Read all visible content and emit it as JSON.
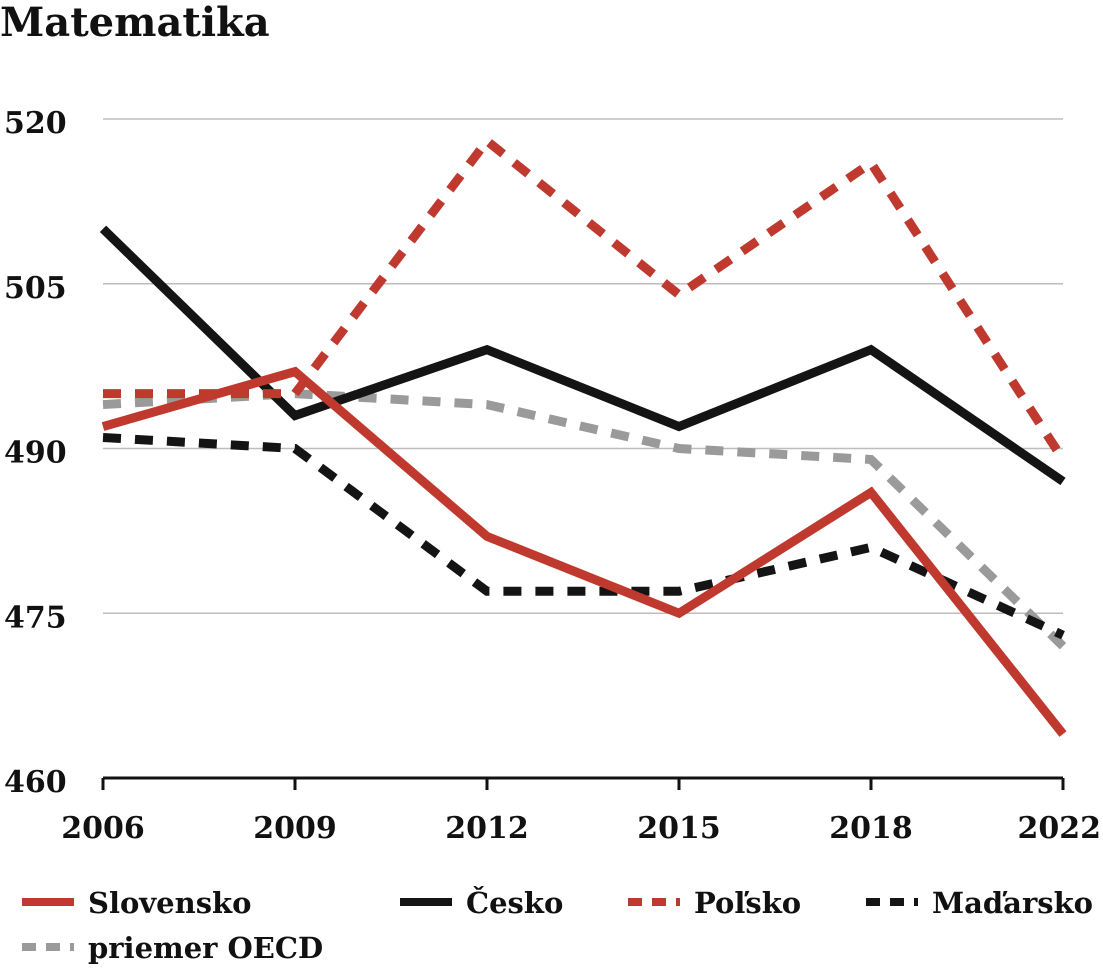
{
  "chart_data": {
    "type": "line",
    "title": "Matematika",
    "xlabel": "",
    "ylabel": "",
    "categories": [
      "2006",
      "2009",
      "2012",
      "2015",
      "2018",
      "2022"
    ],
    "ylim": [
      460,
      520
    ],
    "yticks": [
      520,
      505,
      490,
      475,
      460
    ],
    "grid": true,
    "legend_position": "bottom",
    "series": [
      {
        "name": "Slovensko",
        "values": [
          492,
          497,
          482,
          475,
          486,
          464
        ],
        "color": "#c0392f",
        "dashed": false
      },
      {
        "name": "Česko",
        "values": [
          510,
          493,
          499,
          492,
          499,
          487
        ],
        "color": "#141414",
        "dashed": false
      },
      {
        "name": "Poľsko",
        "values": [
          495,
          495,
          518,
          504,
          516,
          489
        ],
        "color": "#c0392f",
        "dashed": true
      },
      {
        "name": "Maďarsko",
        "values": [
          491,
          490,
          477,
          477,
          481,
          473
        ],
        "color": "#141414",
        "dashed": true
      },
      {
        "name": "priemer OECD",
        "values": [
          494,
          495,
          494,
          490,
          489,
          472
        ],
        "color": "#9a9a9a",
        "dashed": true
      }
    ]
  }
}
